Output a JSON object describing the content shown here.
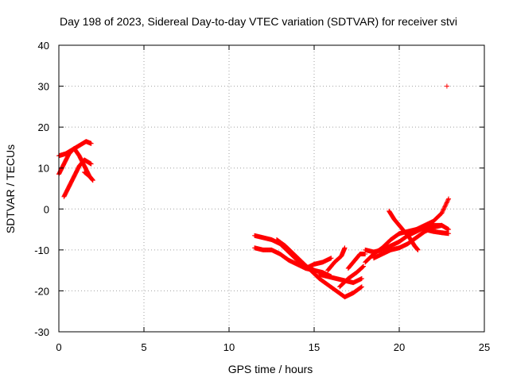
{
  "chart_data": {
    "type": "scatter",
    "title": "Day 198 of 2023, Sidereal Day-to-day VTEC variation (SDTVAR) for receiver stvi",
    "xlabel": "GPS time / hours",
    "ylabel": "SDTVAR / TECUs",
    "xlim": [
      0,
      25
    ],
    "ylim": [
      -30,
      40
    ],
    "xticks": [
      0,
      5,
      10,
      15,
      20,
      25
    ],
    "yticks": [
      -30,
      -20,
      -10,
      0,
      10,
      20,
      30,
      40
    ],
    "grid": true,
    "marker": "+",
    "color": "#ff0000",
    "series": [
      {
        "tracks": [
          [
            [
              0.0,
              8.5
            ],
            [
              0.3,
              11.0
            ],
            [
              0.6,
              13.5
            ],
            [
              0.9,
              14.8
            ],
            [
              1.2,
              13.0
            ],
            [
              1.5,
              10.5
            ],
            [
              1.8,
              8.0
            ]
          ],
          [
            [
              0.0,
              13.0
            ],
            [
              0.4,
              13.5
            ],
            [
              0.8,
              14.5
            ],
            [
              1.2,
              15.5
            ],
            [
              1.6,
              16.5
            ],
            [
              1.9,
              16.0
            ]
          ],
          [
            [
              0.3,
              3.0
            ],
            [
              0.6,
              5.5
            ],
            [
              0.9,
              8.0
            ],
            [
              1.2,
              10.5
            ],
            [
              1.5,
              12.0
            ],
            [
              1.9,
              11.0
            ]
          ],
          [
            [
              1.5,
              9.0
            ],
            [
              1.8,
              8.0
            ],
            [
              2.0,
              7.0
            ]
          ],
          [
            [
              11.5,
              -6.5
            ],
            [
              12.0,
              -7.0
            ],
            [
              12.5,
              -7.5
            ],
            [
              13.0,
              -8.5
            ],
            [
              13.5,
              -10.5
            ],
            [
              14.0,
              -12.5
            ],
            [
              14.5,
              -14.0
            ],
            [
              15.0,
              -15.0
            ],
            [
              15.5,
              -15.5
            ],
            [
              16.0,
              -16.5
            ]
          ],
          [
            [
              11.5,
              -9.5
            ],
            [
              12.0,
              -10.0
            ],
            [
              12.5,
              -10.0
            ],
            [
              13.0,
              -11.0
            ],
            [
              13.5,
              -12.5
            ],
            [
              14.0,
              -13.5
            ],
            [
              14.5,
              -14.5
            ],
            [
              15.0,
              -15.0
            ]
          ],
          [
            [
              12.8,
              -7.5
            ],
            [
              13.3,
              -9.0
            ],
            [
              13.8,
              -11.0
            ],
            [
              14.3,
              -13.0
            ],
            [
              14.8,
              -15.0
            ],
            [
              15.3,
              -17.0
            ],
            [
              15.8,
              -18.5
            ],
            [
              16.3,
              -20.0
            ],
            [
              16.8,
              -21.5
            ],
            [
              17.3,
              -20.5
            ],
            [
              17.8,
              -19.0
            ]
          ],
          [
            [
              14.5,
              -14.5
            ],
            [
              15.0,
              -13.5
            ],
            [
              15.5,
              -13.0
            ],
            [
              16.0,
              -12.0
            ]
          ],
          [
            [
              15.3,
              -16.0
            ],
            [
              15.8,
              -16.5
            ],
            [
              16.3,
              -17.0
            ],
            [
              16.8,
              -17.5
            ],
            [
              17.3,
              -18.0
            ],
            [
              17.8,
              -17.0
            ]
          ],
          [
            [
              15.8,
              -15.0
            ],
            [
              16.2,
              -13.0
            ],
            [
              16.6,
              -11.5
            ],
            [
              16.8,
              -9.5
            ]
          ],
          [
            [
              16.5,
              -19.0
            ],
            [
              17.0,
              -17.0
            ],
            [
              17.5,
              -15.5
            ],
            [
              17.9,
              -14.0
            ]
          ],
          [
            [
              17.0,
              -14.5
            ],
            [
              17.4,
              -12.5
            ],
            [
              17.7,
              -11.0
            ],
            [
              18.0,
              -11.0
            ]
          ],
          [
            [
              18.0,
              -13.0
            ],
            [
              18.5,
              -11.0
            ],
            [
              19.0,
              -9.5
            ],
            [
              19.5,
              -7.5
            ],
            [
              20.0,
              -6.0
            ],
            [
              20.5,
              -5.5
            ],
            [
              21.0,
              -5.0
            ]
          ],
          [
            [
              18.0,
              -10.0
            ],
            [
              18.5,
              -10.5
            ],
            [
              19.0,
              -10.0
            ],
            [
              19.5,
              -9.0
            ],
            [
              20.0,
              -8.0
            ],
            [
              20.5,
              -6.5
            ],
            [
              21.0,
              -5.5
            ],
            [
              21.5,
              -4.5
            ],
            [
              22.0,
              -4.0
            ],
            [
              22.5,
              -4.0
            ]
          ],
          [
            [
              19.4,
              -0.5
            ],
            [
              19.7,
              -2.5
            ],
            [
              20.0,
              -4.0
            ],
            [
              20.3,
              -5.5
            ],
            [
              20.6,
              -7.0
            ],
            [
              20.9,
              -9.0
            ],
            [
              21.1,
              -10.0
            ]
          ],
          [
            [
              18.5,
              -12.0
            ],
            [
              19.0,
              -11.0
            ],
            [
              19.5,
              -10.0
            ],
            [
              20.0,
              -9.5
            ],
            [
              20.5,
              -8.5
            ],
            [
              21.0,
              -7.0
            ],
            [
              21.5,
              -5.5
            ],
            [
              22.0,
              -4.5
            ],
            [
              22.5,
              -4.0
            ],
            [
              22.9,
              -5.0
            ]
          ],
          [
            [
              20.5,
              -6.0
            ],
            [
              21.0,
              -5.0
            ],
            [
              21.5,
              -4.0
            ],
            [
              22.0,
              -3.0
            ],
            [
              22.5,
              -1.0
            ],
            [
              22.9,
              2.5
            ]
          ],
          [
            [
              21.5,
              -5.0
            ],
            [
              22.0,
              -5.5
            ],
            [
              22.5,
              -5.8
            ],
            [
              22.9,
              -6.0
            ]
          ]
        ],
        "points": [
          [
            22.8,
            30.0
          ]
        ]
      }
    ]
  }
}
